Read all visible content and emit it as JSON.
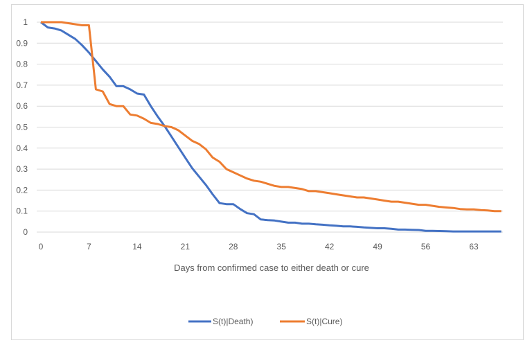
{
  "chart_data": {
    "type": "line",
    "title": "",
    "xlabel": "Days from confirmed case to either death or cure",
    "ylabel": "",
    "xlim": [
      0,
      67
    ],
    "ylim": [
      0,
      1
    ],
    "x_ticks": [
      "0",
      "7",
      "14",
      "21",
      "28",
      "35",
      "42",
      "49",
      "56",
      "63"
    ],
    "y_ticks": [
      "0",
      "0.1",
      "0.2",
      "0.3",
      "0.4",
      "0.5",
      "0.6",
      "0.7",
      "0.8",
      "0.9",
      "1"
    ],
    "grid": "horizontal",
    "legend_position": "bottom",
    "series": [
      {
        "name": "S(t)|Death)",
        "color": "#4472c4",
        "values": [
          1,
          0.975,
          0.97,
          0.96,
          0.94,
          0.92,
          0.89,
          0.855,
          0.815,
          0.775,
          0.74,
          0.695,
          0.695,
          0.68,
          0.66,
          0.655,
          0.6,
          0.55,
          0.505,
          0.455,
          0.405,
          0.355,
          0.305,
          0.265,
          0.225,
          0.18,
          0.138,
          0.133,
          0.133,
          0.11,
          0.09,
          0.085,
          0.06,
          0.057,
          0.055,
          0.05,
          0.045,
          0.045,
          0.04,
          0.04,
          0.037,
          0.035,
          0.032,
          0.03,
          0.027,
          0.027,
          0.025,
          0.022,
          0.02,
          0.018,
          0.018,
          0.016,
          0.012,
          0.012,
          0.011,
          0.01,
          0.006,
          0.006,
          0.005,
          0.004,
          0.003,
          0.003,
          0.003,
          0.003,
          0.003,
          0.003,
          0.003,
          0.003
        ]
      },
      {
        "name": "S(t)|Cure)",
        "color": "#ed7d31",
        "values": [
          1,
          1,
          1,
          1,
          0.995,
          0.99,
          0.985,
          0.985,
          0.68,
          0.67,
          0.61,
          0.6,
          0.6,
          0.56,
          0.555,
          0.54,
          0.52,
          0.515,
          0.505,
          0.5,
          0.485,
          0.46,
          0.435,
          0.42,
          0.395,
          0.355,
          0.335,
          0.3,
          0.285,
          0.27,
          0.255,
          0.245,
          0.24,
          0.23,
          0.22,
          0.215,
          0.215,
          0.21,
          0.205,
          0.195,
          0.195,
          0.19,
          0.185,
          0.18,
          0.175,
          0.17,
          0.165,
          0.165,
          0.16,
          0.155,
          0.15,
          0.145,
          0.145,
          0.14,
          0.135,
          0.13,
          0.13,
          0.125,
          0.12,
          0.117,
          0.115,
          0.11,
          0.108,
          0.108,
          0.105,
          0.103,
          0.1,
          0.1
        ]
      }
    ]
  }
}
